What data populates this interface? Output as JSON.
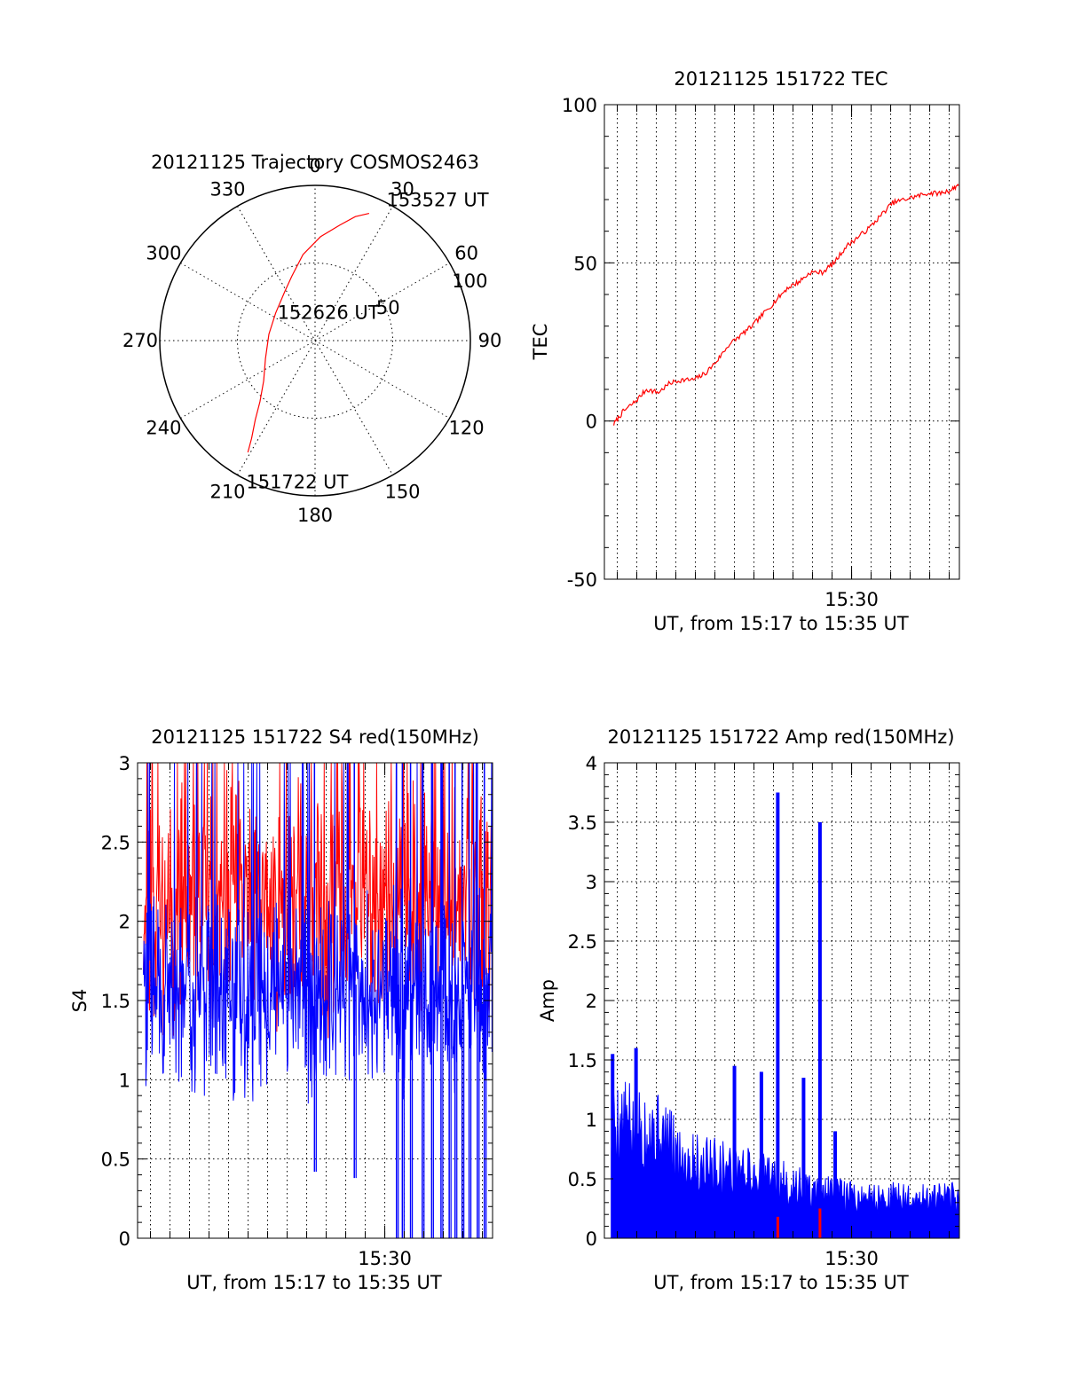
{
  "colors": {
    "red": "#ff0000",
    "blue": "#0000ff",
    "axis": "#000000"
  },
  "chart_data": [
    {
      "id": "trajectory",
      "type": "polar",
      "title": "20121125 Trajectory COSMOS2463",
      "azimuth_labels": [
        "0",
        "30",
        "60",
        "90",
        "120",
        "150",
        "180",
        "210",
        "240",
        "270",
        "300",
        "330"
      ],
      "radial_labels": [
        "50",
        "100"
      ],
      "grid": true,
      "track": {
        "color": "red",
        "points": [
          {
            "az": 211,
            "zenith": 84
          },
          {
            "az": 213,
            "zenith": 75
          },
          {
            "az": 217,
            "zenith": 64
          },
          {
            "az": 222,
            "zenith": 53
          },
          {
            "az": 232,
            "zenith": 42
          },
          {
            "az": 250,
            "zenith": 34
          },
          {
            "az": 278,
            "zenith": 30
          },
          {
            "az": 305,
            "zenith": 31
          },
          {
            "az": 328,
            "zenith": 37
          },
          {
            "az": 340,
            "zenith": 44
          },
          {
            "az": 352,
            "zenith": 56
          },
          {
            "az": 3,
            "zenith": 67
          },
          {
            "az": 12,
            "zenith": 76
          },
          {
            "az": 18,
            "zenith": 84
          },
          {
            "az": 23,
            "zenith": 89
          }
        ]
      },
      "annotations": [
        {
          "text": "153527 UT",
          "az": 28,
          "zenith": 98
        },
        {
          "text": "152626 UT",
          "az": 300,
          "zenith": 28
        },
        {
          "text": "151722 UT",
          "az": 205,
          "zenith": 105
        }
      ]
    },
    {
      "id": "tec",
      "type": "line",
      "title": "20121125 151722 TEC",
      "xlabel": "UT, from 15:17 to 15:35 UT",
      "ylabel": "TEC",
      "xlim": [
        15.289,
        15.592
      ],
      "ylim": [
        -50,
        100
      ],
      "yticks": [
        "100",
        "50",
        "0",
        "-50"
      ],
      "xtick_label": "15:30",
      "xtick_value": 15.5,
      "grid": true,
      "series": [
        {
          "color": "red",
          "x": [
            15.297,
            15.305,
            15.315,
            15.325,
            15.335,
            15.345,
            15.355,
            15.365,
            15.375,
            15.385,
            15.395,
            15.405,
            15.415,
            15.425,
            15.435,
            15.445,
            15.455,
            15.465,
            15.475,
            15.485,
            15.495,
            15.505,
            15.515,
            15.525,
            15.535,
            15.545,
            15.555,
            15.565,
            15.575,
            15.585,
            15.592
          ],
          "y": [
            -1,
            3,
            6,
            10,
            9,
            12,
            13,
            13,
            15,
            19,
            24,
            27,
            30,
            34,
            38,
            42,
            44,
            47,
            47,
            50,
            55,
            58,
            61,
            65,
            69,
            70,
            71,
            72,
            72,
            73,
            75
          ]
        }
      ]
    },
    {
      "id": "s4",
      "type": "line",
      "title": "20121125 151722 S4 red(150MHz)",
      "xlabel": "UT, from 15:17 to 15:35 UT",
      "ylabel": "S4",
      "xlim": [
        15.289,
        15.592
      ],
      "ylim": [
        0,
        3
      ],
      "yticks": [
        "3",
        "2.5",
        "2",
        "1.5",
        "1",
        "0.5",
        "0"
      ],
      "xtick_label": "15:30",
      "xtick_value": 15.5,
      "grid": true,
      "series": [
        {
          "color": "red",
          "noise": {
            "start": 15.294,
            "end": 15.592,
            "n": 700,
            "mean": 2.1,
            "spread": 0.55,
            "min": 1.2,
            "max": 3.0,
            "seed": 11
          }
        },
        {
          "color": "blue",
          "noise": {
            "start": 15.294,
            "end": 15.592,
            "n": 700,
            "mean": 1.55,
            "spread": 0.45,
            "min": 0.85,
            "max": 3.0,
            "seed": 29
          }
        },
        {
          "color": "blue",
          "dips": [
            {
              "x": 15.44,
              "y": 0.42
            },
            {
              "x": 15.474,
              "y": 0.38
            },
            {
              "x": 15.51,
              "y": 0.0
            },
            {
              "x": 15.515,
              "y": 0.0
            },
            {
              "x": 15.522,
              "y": 0.0
            },
            {
              "x": 15.532,
              "y": 0.0
            },
            {
              "x": 15.54,
              "y": 0.0
            },
            {
              "x": 15.548,
              "y": 0.0
            },
            {
              "x": 15.555,
              "y": 0.0
            },
            {
              "x": 15.56,
              "y": 0.0
            },
            {
              "x": 15.566,
              "y": 0.0
            },
            {
              "x": 15.572,
              "y": 0.0
            },
            {
              "x": 15.579,
              "y": 0.0
            },
            {
              "x": 15.585,
              "y": 0.0
            }
          ]
        }
      ]
    },
    {
      "id": "amp",
      "type": "bar",
      "title": "20121125 151722 Amp red(150MHz)",
      "xlabel": "UT, from 15:17 to 15:35 UT",
      "ylabel": "Amp",
      "xlim": [
        15.289,
        15.592
      ],
      "ylim": [
        0,
        4
      ],
      "yticks": [
        "4",
        "3.5",
        "3",
        "2.5",
        "2",
        "1.5",
        "1",
        "0.5",
        "0"
      ],
      "xtick_label": "15:30",
      "xtick_value": 15.5,
      "grid": true,
      "series": [
        {
          "color": "blue",
          "envelope": {
            "x": [
              15.295,
              15.31,
              15.33,
              15.35,
              15.37,
              15.39,
              15.41,
              15.43,
              15.45,
              15.47,
              15.49,
              15.51,
              15.53,
              15.55,
              15.57,
              15.592
            ],
            "y": [
              1.15,
              1.1,
              1.1,
              0.85,
              0.75,
              0.7,
              0.65,
              0.6,
              0.52,
              0.45,
              0.42,
              0.4,
              0.4,
              0.38,
              0.38,
              0.4
            ]
          },
          "spikes": [
            {
              "x": 15.437,
              "y": 3.75
            },
            {
              "x": 15.473,
              "y": 3.5
            },
            {
              "x": 15.4,
              "y": 1.45
            },
            {
              "x": 15.423,
              "y": 1.4
            },
            {
              "x": 15.459,
              "y": 1.35
            },
            {
              "x": 15.316,
              "y": 1.6
            },
            {
              "x": 15.296,
              "y": 1.55
            },
            {
              "x": 15.486,
              "y": 0.9
            }
          ]
        },
        {
          "color": "red",
          "spikes": [
            {
              "x": 15.437,
              "y": 0.18
            },
            {
              "x": 15.473,
              "y": 0.25
            }
          ]
        }
      ]
    }
  ]
}
